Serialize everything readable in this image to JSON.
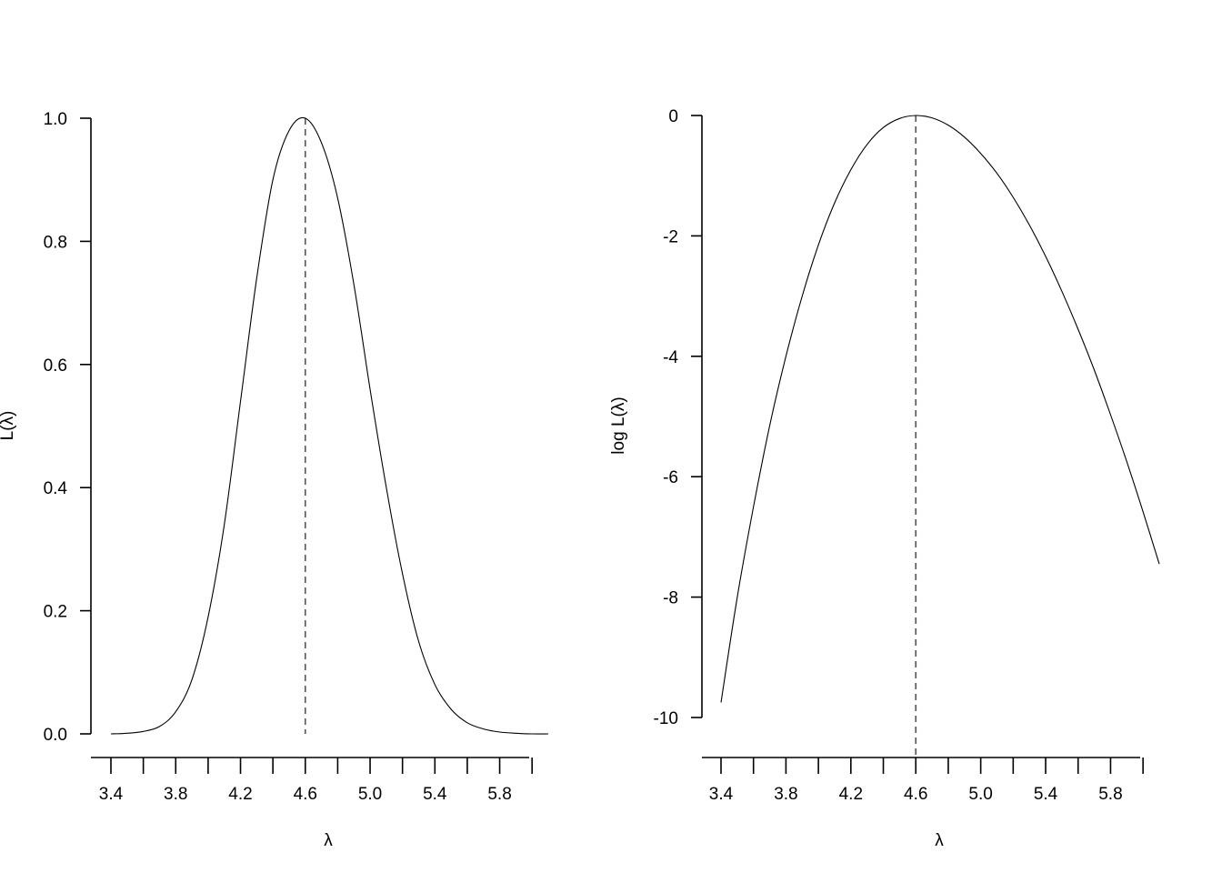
{
  "chart_data": [
    {
      "type": "line",
      "xlabel": "λ",
      "ylabel": "L(λ)",
      "xlim": [
        3.4,
        6.1
      ],
      "ylim": [
        0.0,
        1.0
      ],
      "x_ticks": [
        "3.4",
        "",
        "3.8",
        "",
        "4.2",
        "",
        "4.6",
        "",
        "5.0",
        "",
        "5.4",
        "",
        "5.8",
        ""
      ],
      "x_tick_values": [
        3.4,
        3.6,
        3.8,
        4.0,
        4.2,
        4.4,
        4.6,
        4.8,
        5.0,
        5.2,
        5.4,
        5.6,
        5.8,
        6.0
      ],
      "y_ticks": [
        "0.0",
        "0.2",
        "0.4",
        "0.6",
        "0.8",
        "1.0"
      ],
      "y_tick_values": [
        0.0,
        0.2,
        0.4,
        0.6,
        0.8,
        1.0
      ],
      "reference_line": {
        "x": 4.6,
        "style": "dashed"
      },
      "series": [
        {
          "x": [
            3.4,
            3.5,
            3.6,
            3.7,
            3.8,
            3.9,
            4.0,
            4.1,
            4.2,
            4.3,
            4.4,
            4.5,
            4.6,
            4.7,
            4.8,
            4.9,
            5.0,
            5.1,
            5.2,
            5.3,
            5.4,
            5.5,
            5.6,
            5.7,
            5.8,
            5.9,
            6.0,
            6.1
          ],
          "values": [
            0.0,
            0.001,
            0.004,
            0.012,
            0.036,
            0.088,
            0.19,
            0.34,
            0.54,
            0.74,
            0.9,
            0.98,
            1.0,
            0.96,
            0.87,
            0.73,
            0.56,
            0.4,
            0.26,
            0.15,
            0.08,
            0.04,
            0.018,
            0.008,
            0.003,
            0.001,
            0.0,
            0.0
          ]
        }
      ]
    },
    {
      "type": "line",
      "xlabel": "λ",
      "ylabel": "log L(λ)",
      "xlim": [
        3.4,
        6.1
      ],
      "ylim": [
        -10,
        0
      ],
      "x_ticks": [
        "3.4",
        "",
        "3.8",
        "",
        "4.2",
        "",
        "4.6",
        "",
        "5.0",
        "",
        "5.4",
        "",
        "5.8",
        ""
      ],
      "x_tick_values": [
        3.4,
        3.6,
        3.8,
        4.0,
        4.2,
        4.4,
        4.6,
        4.8,
        5.0,
        5.2,
        5.4,
        5.6,
        5.8,
        6.0
      ],
      "y_ticks": [
        "0",
        "-2",
        "-4",
        "-6",
        "-8",
        "-10"
      ],
      "y_tick_values": [
        0,
        -2,
        -4,
        -6,
        -8,
        -10
      ],
      "reference_line": {
        "x": 4.6,
        "style": "dashed"
      },
      "series": [
        {
          "x": [
            3.4,
            3.5,
            3.6,
            3.7,
            3.8,
            3.9,
            4.0,
            4.1,
            4.2,
            4.3,
            4.4,
            4.5,
            4.6,
            4.7,
            4.8,
            4.9,
            5.0,
            5.1,
            5.2,
            5.3,
            5.4,
            5.5,
            5.6,
            5.7,
            5.8,
            5.9,
            6.0,
            6.1
          ],
          "values": [
            -9.75,
            -8.0,
            -6.5,
            -5.15,
            -4.0,
            -3.0,
            -2.15,
            -1.45,
            -0.9,
            -0.48,
            -0.2,
            -0.05,
            0.0,
            -0.04,
            -0.16,
            -0.36,
            -0.63,
            -0.96,
            -1.36,
            -1.82,
            -2.34,
            -2.92,
            -3.55,
            -4.23,
            -4.97,
            -5.75,
            -6.58,
            -7.45
          ]
        }
      ]
    }
  ]
}
